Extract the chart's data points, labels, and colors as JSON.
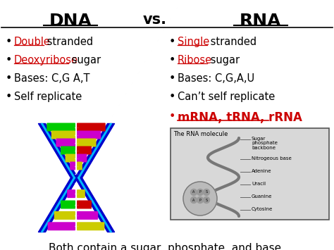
{
  "title_dna": "DNA",
  "title_vs": "vs.",
  "title_rna": "RNA",
  "bg_color": "#ffffff",
  "dna_items": [
    {
      "red_text": "Double",
      "red_underline": true,
      "black_text": " stranded"
    },
    {
      "red_text": "Deoxyribose",
      "red_underline": true,
      "black_text": " sugar"
    },
    {
      "red_text": "",
      "black_text": "Bases: C,G A,T"
    },
    {
      "red_text": "",
      "black_text": "Self replicate"
    }
  ],
  "rna_items": [
    {
      "red_text": "Single",
      "red_underline": true,
      "black_text": " stranded"
    },
    {
      "red_text": "Ribose",
      "red_underline": true,
      "black_text": " sugar"
    },
    {
      "red_text": "",
      "black_text": "Bases: C,G,A,U"
    },
    {
      "red_text": "",
      "black_text": "Can’t self replicate"
    },
    {
      "red_text": "mRNA, tRNA, rRNA",
      "red_underline": true,
      "black_text": ""
    }
  ],
  "footer": "Both contain a sugar, phosphate, and base.",
  "title_fontsize": 18,
  "body_fontsize": 10.5,
  "footer_fontsize": 11,
  "helix_colors_left": [
    "#00cc00",
    "#cccc00",
    "#cc00cc",
    "#00cc00",
    "#cccc00",
    "#cc00cc",
    "#00cc00",
    "#cccc00",
    "#cc00cc",
    "#00cc00",
    "#cccc00",
    "#cc00cc"
  ],
  "helix_colors_right": [
    "#cc0000",
    "#cc00cc",
    "#cccc00",
    "#cc0000",
    "#cc00cc",
    "#cccc00",
    "#cc0000",
    "#cc00cc",
    "#cccc00",
    "#cc0000",
    "#cc00cc",
    "#cccc00"
  ],
  "helix_blue": "#0000cc",
  "helix_light": "#00ccff",
  "rna_box_label": "The RNA molecule",
  "rna_labels": [
    "Sugar\nphosphate\nbackbone",
    "Nitrogeous base",
    "Adenine",
    "Uracil",
    "Guanine",
    "Cytosine"
  ]
}
